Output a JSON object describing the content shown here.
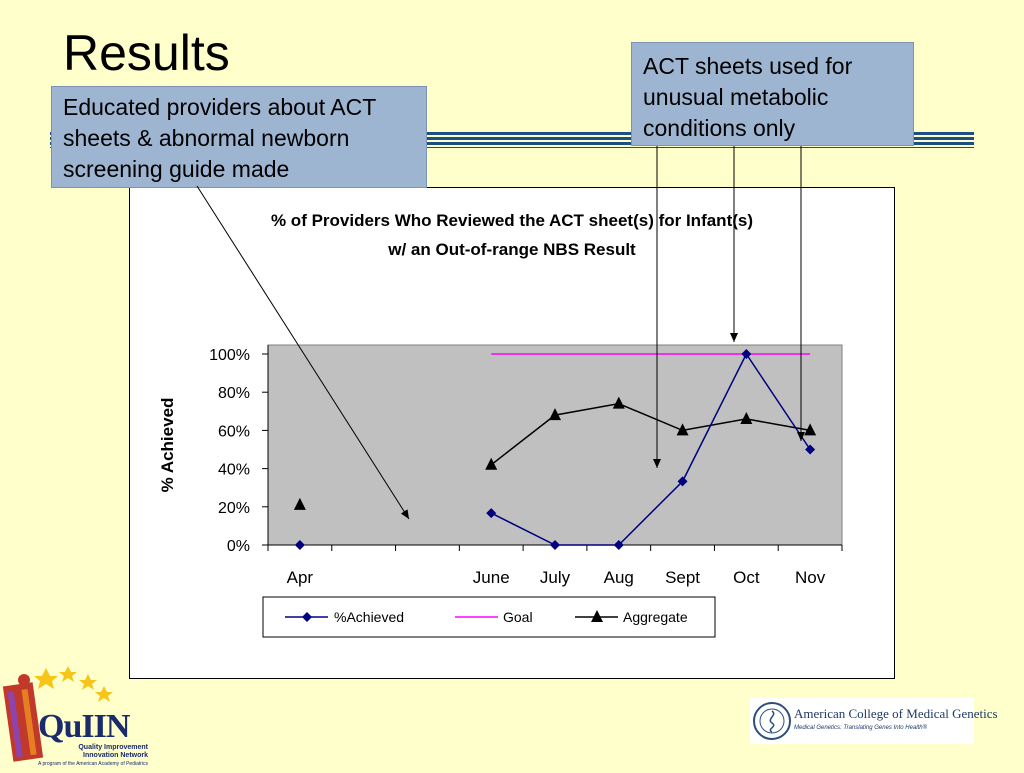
{
  "slide": {
    "title": "Results"
  },
  "callouts": {
    "left": [
      "Educated providers about ACT",
      "sheets & abnormal newborn",
      "screening guide made"
    ],
    "right": [
      "ACT sheets used for",
      "unusual metabolic",
      "conditions only"
    ]
  },
  "chart_data": {
    "type": "line",
    "title_lines": [
      "% of Providers Who Reviewed the ACT sheet(s) for Infant(s)",
      "w/ an Out-of-range NBS Result"
    ],
    "ylabel": "% Achieved",
    "xlabel": "",
    "ylim": [
      0,
      100
    ],
    "y_ticks": [
      "0%",
      "20%",
      "40%",
      "60%",
      "80%",
      "100%"
    ],
    "categories": [
      "Apr",
      "",
      "",
      "June",
      "July",
      "Aug",
      "Sept",
      "Oct",
      "Nov"
    ],
    "series": [
      {
        "name": "%Achieved",
        "color": "#000080",
        "marker": "diamond",
        "values": [
          0,
          null,
          null,
          16.7,
          0,
          0,
          33.3,
          100,
          50
        ]
      },
      {
        "name": "Goal",
        "color": "#ff00ff",
        "marker": "none",
        "values": [
          null,
          null,
          null,
          100,
          100,
          100,
          100,
          100,
          100
        ]
      },
      {
        "name": "Aggregate",
        "color": "#000000",
        "marker": "triangle",
        "values": [
          21,
          null,
          null,
          42,
          68,
          74,
          60,
          66,
          60
        ]
      }
    ],
    "plot_background": "#c0c0c0",
    "legend_position": "bottom"
  },
  "logos": {
    "left": {
      "name": "QuIIN",
      "lines": [
        "Quality Improvement",
        "Innovation Network",
        "A program of the American Academy of Pediatrics"
      ]
    },
    "right": {
      "name": "American College of Medical Genetics",
      "tagline": "Medical Genetics: Translating Genes Into Health®"
    }
  }
}
